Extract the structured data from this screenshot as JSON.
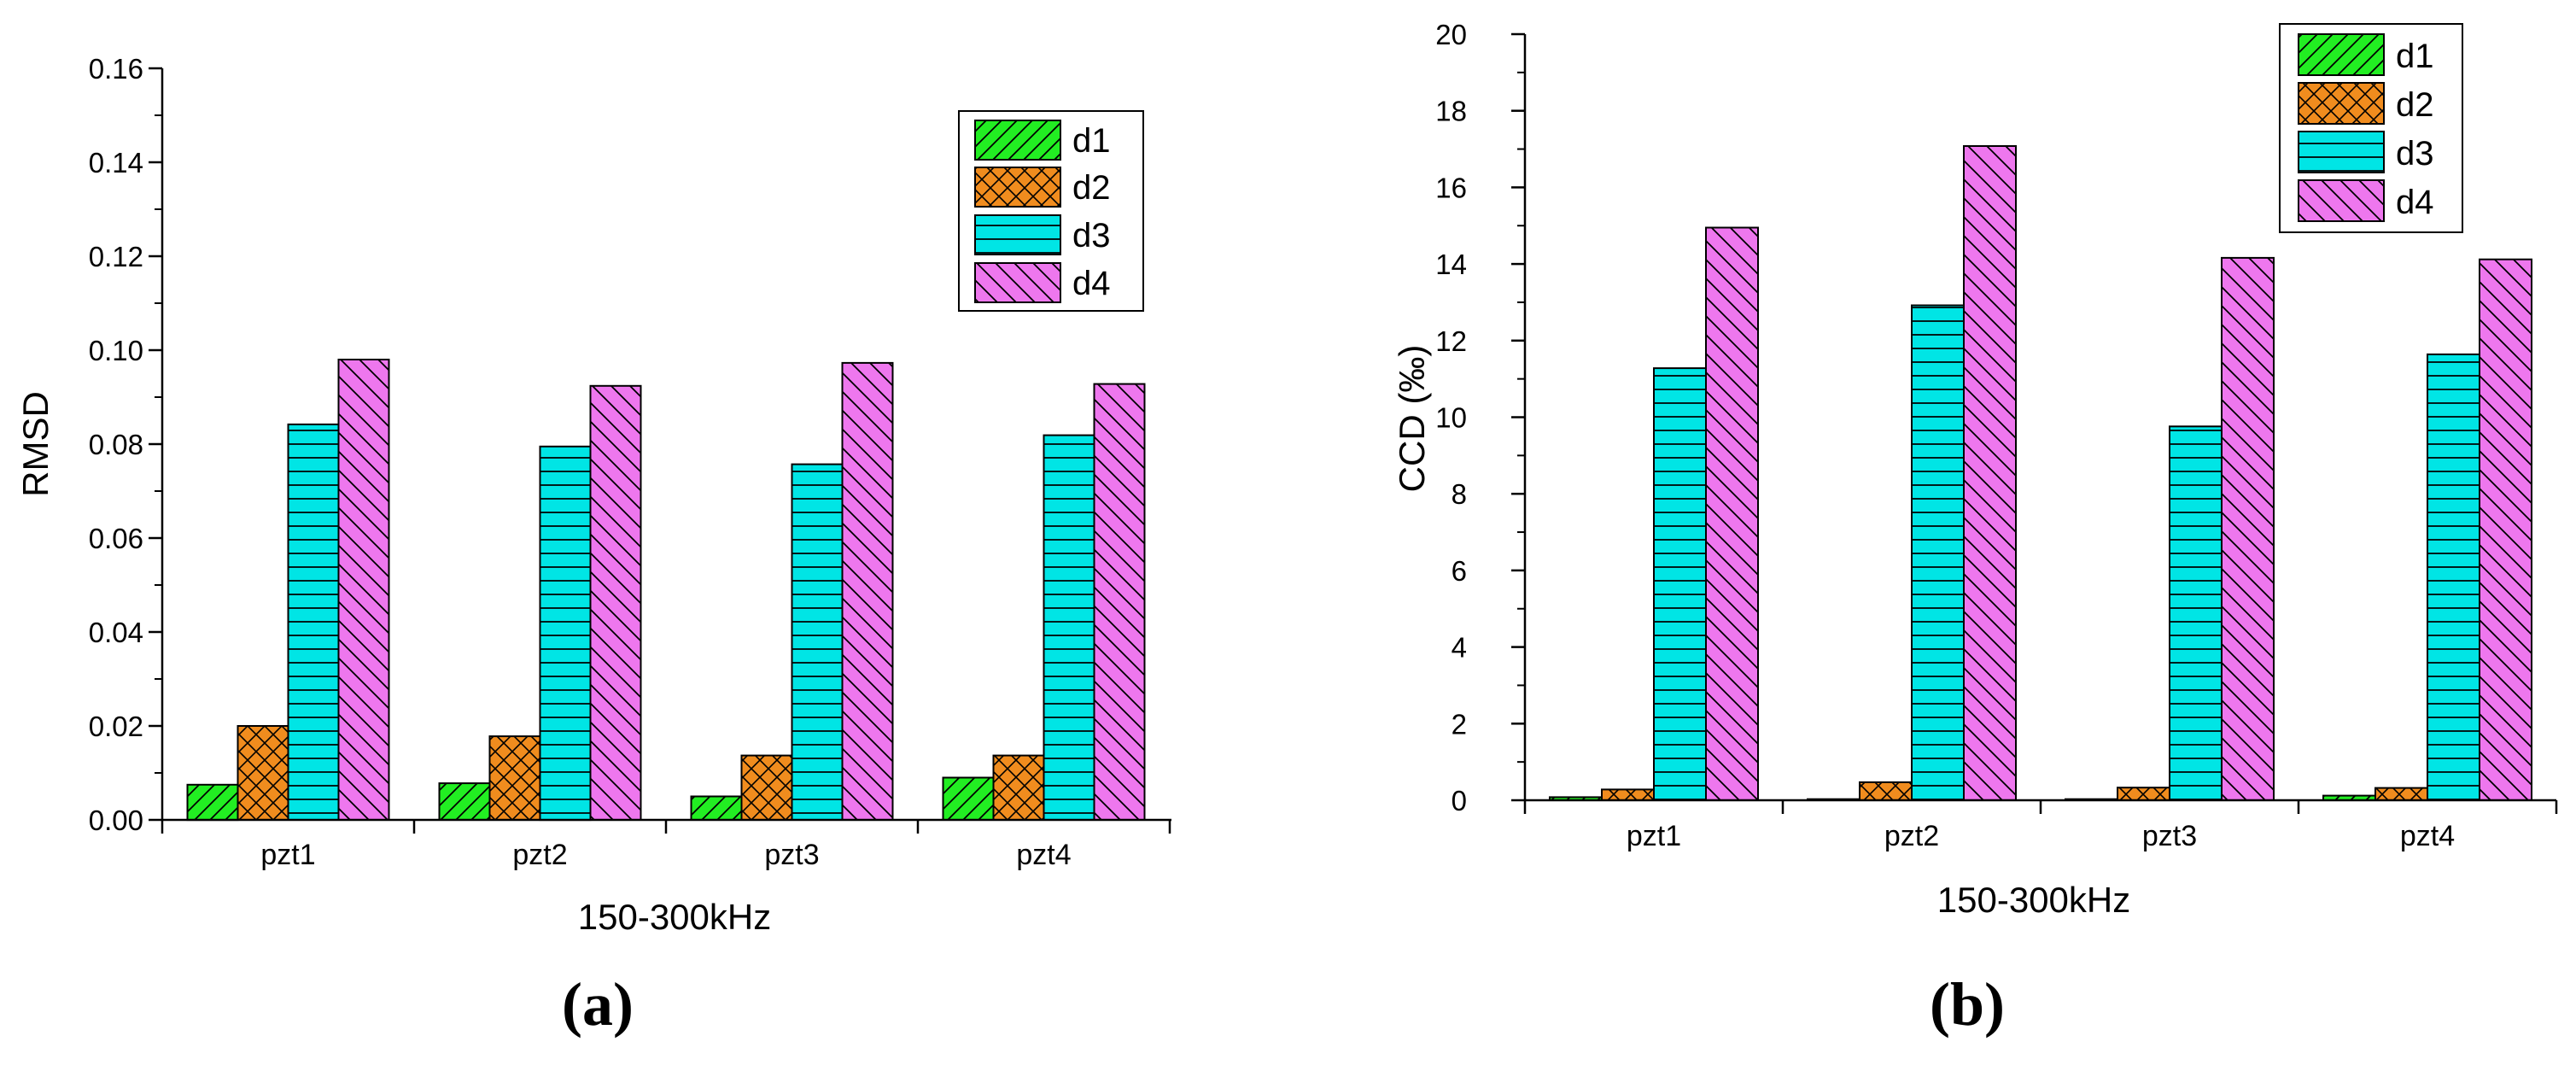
{
  "chart_data": [
    {
      "type": "bar",
      "panel": "(a)",
      "title": "",
      "xlabel": "150-300kHz",
      "ylabel": "RMSD",
      "categories": [
        "pzt1",
        "pzt2",
        "pzt3",
        "pzt4"
      ],
      "ylim": [
        0,
        0.16
      ],
      "yticks": [
        "0.00",
        "0.02",
        "0.04",
        "0.06",
        "0.08",
        "0.10",
        "0.12",
        "0.14",
        "0.16"
      ],
      "legend_position": "top-right",
      "series": [
        {
          "name": "d1",
          "color": "#22ee22",
          "pattern": "diag-up",
          "values": [
            0.0075,
            0.0078,
            0.005,
            0.009
          ]
        },
        {
          "name": "d2",
          "color": "#f08c1e",
          "pattern": "crosshatch",
          "values": [
            0.02,
            0.0178,
            0.0137,
            0.0137
          ]
        },
        {
          "name": "d3",
          "color": "#00e5e5",
          "pattern": "horizontal",
          "values": [
            0.0842,
            0.0795,
            0.0757,
            0.0819
          ]
        },
        {
          "name": "d4",
          "color": "#ee77ee",
          "pattern": "diag-down",
          "values": [
            0.098,
            0.0924,
            0.0973,
            0.0928
          ]
        }
      ]
    },
    {
      "type": "bar",
      "panel": "(b)",
      "title": "",
      "xlabel": "150-300kHz",
      "ylabel": "CCD (‰)",
      "categories": [
        "pzt1",
        "pzt2",
        "pzt3",
        "pzt4"
      ],
      "ylim": [
        0,
        20
      ],
      "yticks": [
        "0",
        "2",
        "4",
        "6",
        "8",
        "10",
        "12",
        "14",
        "16",
        "18",
        "20"
      ],
      "legend_position": "top-right",
      "series": [
        {
          "name": "d1",
          "color": "#22ee22",
          "pattern": "diag-up",
          "values": [
            0.08,
            0.03,
            0.03,
            0.12
          ]
        },
        {
          "name": "d2",
          "color": "#f08c1e",
          "pattern": "crosshatch",
          "values": [
            0.28,
            0.47,
            0.33,
            0.32
          ]
        },
        {
          "name": "d3",
          "color": "#00e5e5",
          "pattern": "horizontal",
          "values": [
            11.28,
            12.92,
            9.76,
            11.64
          ]
        },
        {
          "name": "d4",
          "color": "#ee77ee",
          "pattern": "diag-down",
          "values": [
            14.95,
            17.08,
            14.16,
            14.12
          ]
        }
      ]
    }
  ]
}
